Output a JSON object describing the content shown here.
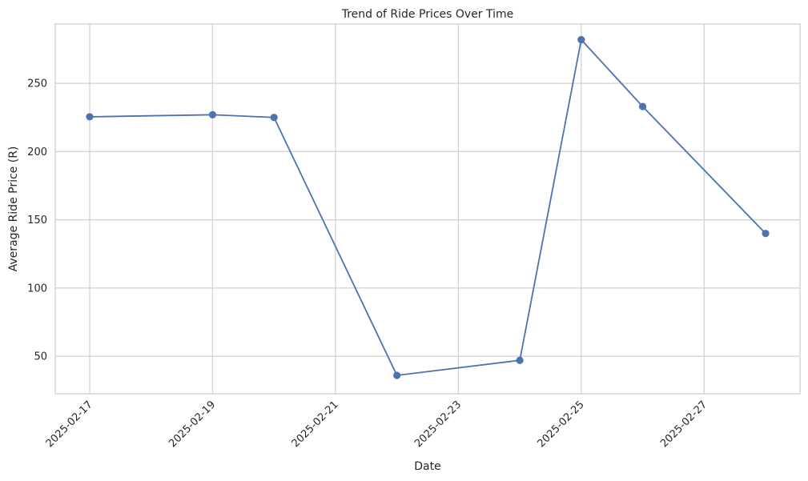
{
  "chart_data": {
    "type": "line",
    "title": "Trend of Ride Prices Over Time",
    "xlabel": "Date",
    "ylabel": "Average Ride Price (R)",
    "x": [
      "2025-02-17",
      "2025-02-19",
      "2025-02-20",
      "2025-02-22",
      "2025-02-24",
      "2025-02-25",
      "2025-02-26",
      "2025-02-28"
    ],
    "series": [
      {
        "values": [
          225.5,
          227,
          225,
          36,
          47,
          282,
          233,
          140
        ],
        "color": "#4c72b0",
        "marker": "circle"
      }
    ],
    "xlim": [
      "2025-02-16.44",
      "2025-02-28.56"
    ],
    "ylim": [
      22.5,
      293.5
    ],
    "x_ticks": [
      "2025-02-17",
      "2025-02-19",
      "2025-02-21",
      "2025-02-23",
      "2025-02-25",
      "2025-02-27"
    ],
    "y_ticks": [
      50,
      100,
      150,
      200,
      250
    ],
    "grid": true,
    "x_tick_rotation": "45"
  }
}
